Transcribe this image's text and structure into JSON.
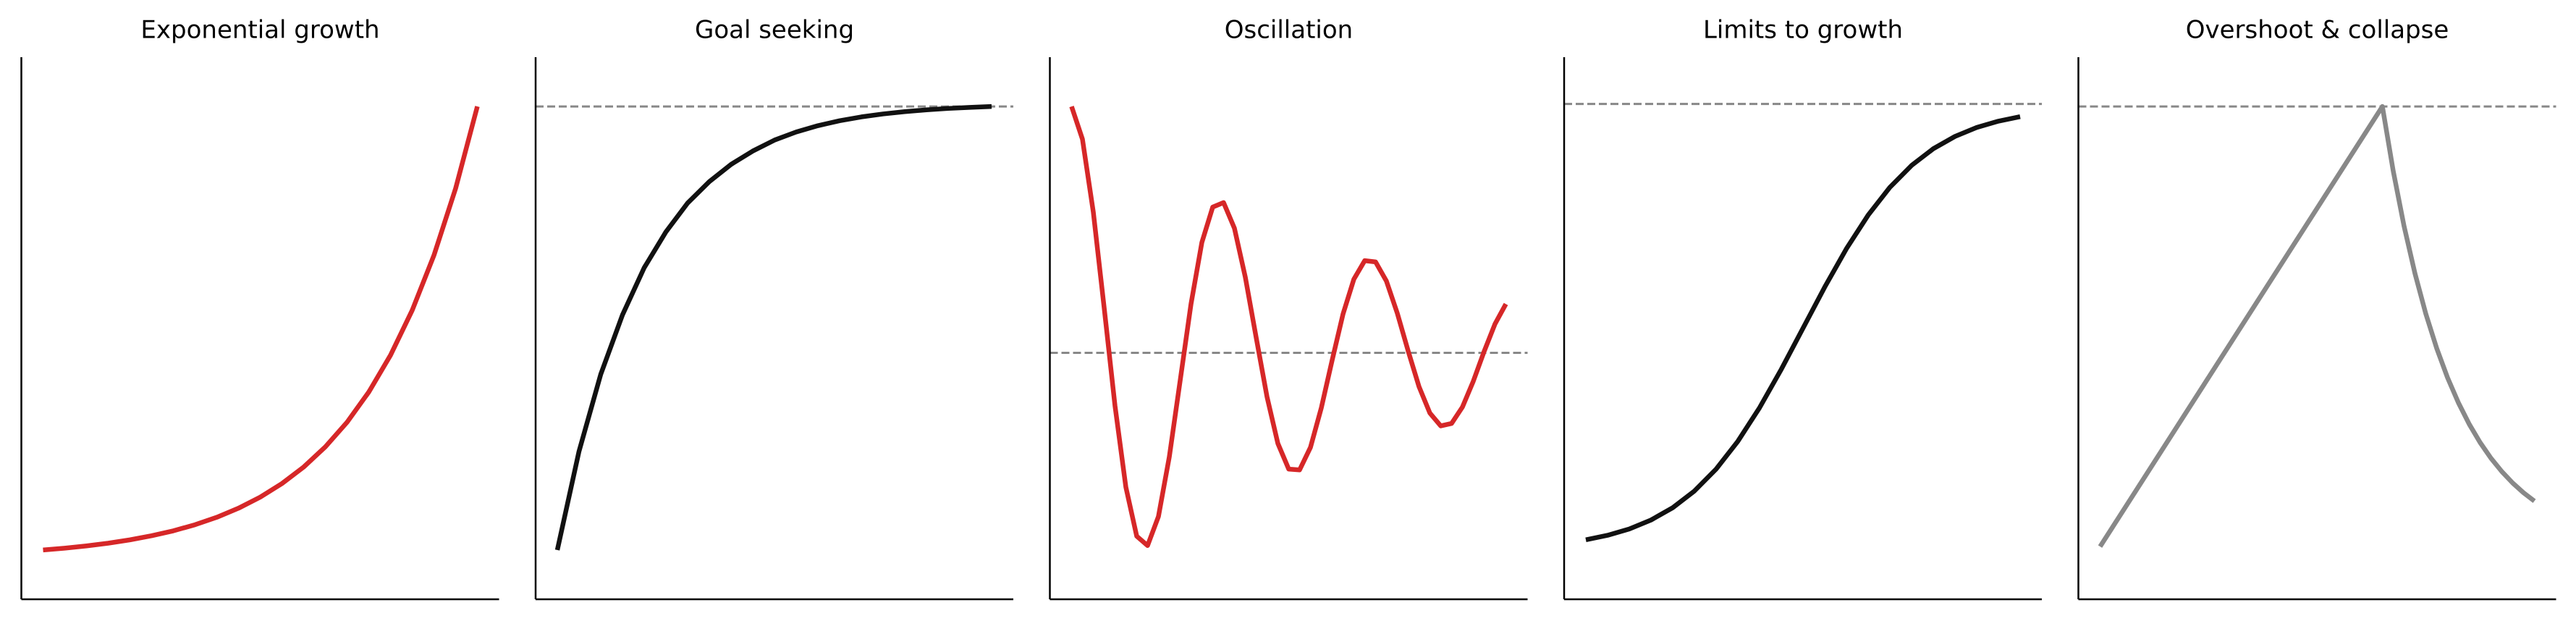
{
  "chart_data": [
    {
      "type": "line",
      "title": "Exponential growth",
      "color": "#d62728",
      "xlim": [
        -0.5,
        10.5
      ],
      "ylim": [
        -0.05,
        1.05
      ],
      "x": [
        0,
        0.5,
        1,
        1.5,
        2,
        2.5,
        3,
        3.5,
        4,
        4.5,
        5,
        5.5,
        6,
        6.5,
        7,
        7.5,
        8,
        8.5,
        9,
        9.5,
        10
      ],
      "values": [
        0.05,
        0.0537,
        0.0583,
        0.0638,
        0.0706,
        0.0789,
        0.0889,
        0.1013,
        0.1164,
        0.1348,
        0.1573,
        0.1848,
        0.2183,
        0.2593,
        0.3093,
        0.3705,
        0.4452,
        0.5364,
        0.6478,
        0.7838,
        0.95
      ]
    },
    {
      "type": "line",
      "title": "Goal seeking",
      "color": "#111111",
      "hline": 0.95,
      "hline_color": "#888888",
      "xlim": [
        -0.5,
        10.5
      ],
      "ylim": [
        -0.05,
        1.05
      ],
      "x": [
        0,
        0.5,
        1,
        1.5,
        2,
        2.5,
        3,
        3.5,
        4,
        4.5,
        5,
        5.5,
        6,
        6.5,
        7,
        7.5,
        8,
        8.5,
        9,
        9.5,
        10
      ],
      "values": [
        0.05,
        0.2504,
        0.4065,
        0.527,
        0.6227,
        0.6954,
        0.754,
        0.7975,
        0.8324,
        0.8595,
        0.8817,
        0.8982,
        0.911,
        0.921,
        0.9288,
        0.9348,
        0.9395,
        0.9431,
        0.946,
        0.9482,
        0.95
      ]
    },
    {
      "type": "line",
      "title": "Oscillation",
      "color": "#d62728",
      "hline": 0.45,
      "hline_color": "#888888",
      "xlim": [
        -0.5,
        10.5
      ],
      "ylim": [
        -0.05,
        1.05
      ],
      "x": [
        0,
        0.25,
        0.5,
        0.75,
        1,
        1.25,
        1.5,
        1.75,
        2,
        2.25,
        2.5,
        2.75,
        3,
        3.25,
        3.5,
        3.75,
        4,
        4.25,
        4.5,
        4.75,
        5,
        5.25,
        5.5,
        5.75,
        6,
        6.25,
        6.5,
        6.75,
        7,
        7.25,
        7.5,
        7.75,
        8,
        8.25,
        8.5,
        8.75,
        9,
        9.25,
        9.5,
        9.75,
        10
      ],
      "values": [
        0.95,
        0.8836,
        0.7359,
        0.5416,
        0.3423,
        0.1776,
        0.0781,
        0.059,
        0.118,
        0.2388,
        0.3936,
        0.5492,
        0.6741,
        0.7458,
        0.755,
        0.7028,
        0.6038,
        0.4814,
        0.3609,
        0.2662,
        0.2142,
        0.2125,
        0.2581,
        0.3383,
        0.4352,
        0.5287,
        0.5995,
        0.6371,
        0.6346,
        0.5956,
        0.5305,
        0.4539,
        0.3815,
        0.3279,
        0.3018,
        0.3068,
        0.3401,
        0.3925,
        0.453,
        0.5088,
        0.5491
      ]
    },
    {
      "type": "line",
      "title": "Limits to growth",
      "color": "#111111",
      "hline": 0.955,
      "hline_color": "#888888",
      "xlim": [
        -0.5,
        10.5
      ],
      "ylim": [
        -0.05,
        1.05
      ],
      "x": [
        0,
        0.5,
        1,
        1.5,
        2,
        2.5,
        3,
        3.5,
        4,
        4.5,
        5,
        5.5,
        6,
        6.5,
        7,
        7.5,
        8,
        8.5,
        9,
        9.5,
        10
      ],
      "values": [
        0.0707,
        0.0798,
        0.0927,
        0.1108,
        0.1358,
        0.1697,
        0.2142,
        0.2706,
        0.3387,
        0.4166,
        0.5,
        0.5834,
        0.6613,
        0.7294,
        0.7858,
        0.8303,
        0.8642,
        0.8892,
        0.9073,
        0.9202,
        0.9293
      ]
    },
    {
      "type": "line",
      "title": "Overshoot & collapse",
      "color": "#888888",
      "hline": 0.95,
      "hline_color": "#888888",
      "xlim": [
        -0.5,
        10.5
      ],
      "ylim": [
        -0.05,
        1.05
      ],
      "x": [
        0,
        6.5,
        6.75,
        7,
        7.25,
        7.5,
        7.75,
        8,
        8.25,
        8.5,
        8.75,
        9,
        9.25,
        9.5,
        9.75,
        10
      ],
      "values": [
        0.057,
        0.95,
        0.8189,
        0.7068,
        0.6112,
        0.5293,
        0.4595,
        0.3998,
        0.3489,
        0.3053,
        0.2681,
        0.2363,
        0.2092,
        0.186,
        0.1662,
        0.1493
      ]
    }
  ]
}
